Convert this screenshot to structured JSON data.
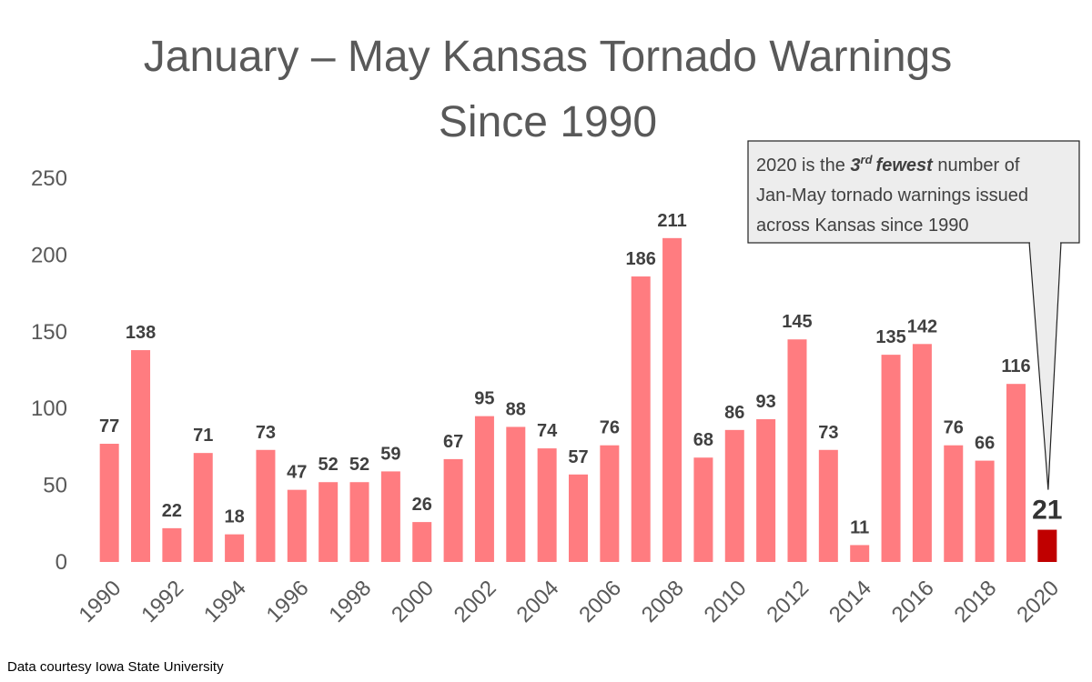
{
  "chart_data": {
    "type": "bar",
    "title_lines": [
      "January – May Kansas Tornado Warnings",
      "Since 1990"
    ],
    "x": [
      1990,
      1991,
      1992,
      1993,
      1994,
      1995,
      1996,
      1997,
      1998,
      1999,
      2000,
      2001,
      2002,
      2003,
      2004,
      2005,
      2006,
      2007,
      2008,
      2009,
      2010,
      2011,
      2012,
      2013,
      2014,
      2015,
      2016,
      2017,
      2018,
      2019,
      2020
    ],
    "values": [
      77,
      138,
      22,
      71,
      18,
      73,
      47,
      52,
      52,
      59,
      26,
      67,
      95,
      88,
      74,
      57,
      76,
      186,
      211,
      68,
      86,
      93,
      145,
      73,
      11,
      135,
      142,
      76,
      66,
      116,
      21
    ],
    "x_tick_labels": [
      "1990",
      "1992",
      "1994",
      "1996",
      "1998",
      "2000",
      "2002",
      "2004",
      "2006",
      "2008",
      "2010",
      "2012",
      "2014",
      "2016",
      "2018",
      "2020"
    ],
    "y_ticks": [
      0,
      50,
      100,
      150,
      200,
      250
    ],
    "ylim": [
      0,
      250
    ],
    "grid": false,
    "legend": "none",
    "highlight_index": 30,
    "colors": {
      "bar": "#FF7C80",
      "highlight": "#C00000"
    },
    "annotation": {
      "line1_pre": "2020 is the ",
      "line1_em_base": "3",
      "line1_em_sup": "rd",
      "line1_em_word": "fewest",
      "line1_post": " number of",
      "line2": "Jan-May tornado warnings issued",
      "line3": "across Kansas since 1990"
    },
    "source": "Data courtesy Iowa State University"
  }
}
